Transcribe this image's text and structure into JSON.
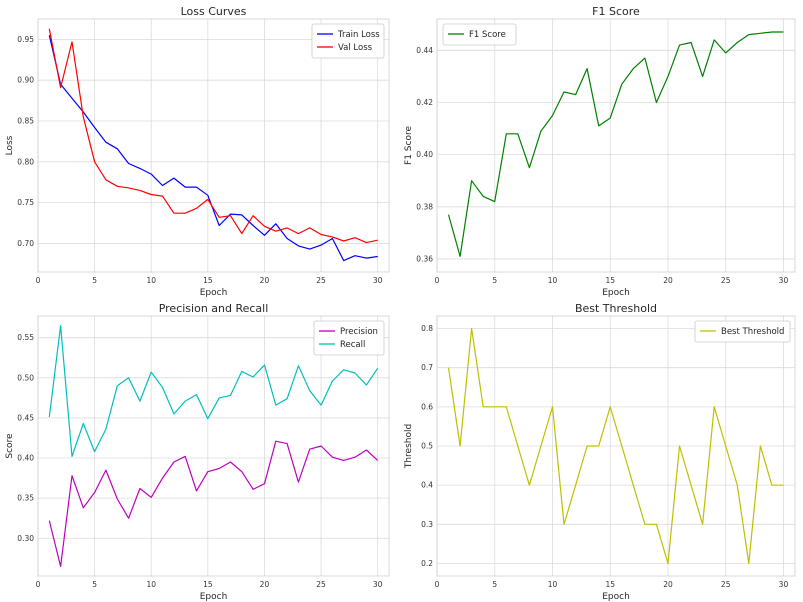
{
  "chart_data": [
    {
      "type": "line",
      "title": "Loss Curves",
      "xlabel": "Epoch",
      "ylabel": "Loss",
      "xlim": [
        0,
        31
      ],
      "ylim": [
        0.665,
        0.975
      ],
      "xticks": [
        0,
        5,
        10,
        15,
        20,
        25,
        30
      ],
      "yticks": [
        0.7,
        0.75,
        0.8,
        0.85,
        0.9,
        0.95
      ],
      "ytick_labels": [
        "0.70",
        "0.75",
        "0.80",
        "0.85",
        "0.90",
        "0.95"
      ],
      "grid": true,
      "legend": "top-right",
      "x": [
        1,
        2,
        3,
        4,
        5,
        6,
        7,
        8,
        9,
        10,
        11,
        12,
        13,
        14,
        15,
        16,
        17,
        18,
        19,
        20,
        21,
        22,
        23,
        24,
        25,
        26,
        27,
        28,
        29,
        30
      ],
      "series": [
        {
          "name": "Train Loss",
          "color": "#0000ff",
          "values": [
            0.955,
            0.895,
            0.878,
            0.861,
            0.842,
            0.824,
            0.816,
            0.798,
            0.792,
            0.785,
            0.771,
            0.78,
            0.769,
            0.769,
            0.759,
            0.722,
            0.736,
            0.735,
            0.722,
            0.71,
            0.724,
            0.706,
            0.697,
            0.693,
            0.698,
            0.706,
            0.679,
            0.685,
            0.682,
            0.684
          ]
        },
        {
          "name": "Val Loss",
          "color": "#ff0000",
          "values": [
            0.963,
            0.891,
            0.947,
            0.855,
            0.8,
            0.778,
            0.77,
            0.768,
            0.765,
            0.76,
            0.758,
            0.737,
            0.737,
            0.743,
            0.754,
            0.732,
            0.734,
            0.712,
            0.734,
            0.721,
            0.715,
            0.719,
            0.712,
            0.719,
            0.711,
            0.708,
            0.703,
            0.707,
            0.701,
            0.704
          ]
        }
      ]
    },
    {
      "type": "line",
      "title": "F1 Score",
      "xlabel": "Epoch",
      "ylabel": "F1 Score",
      "xlim": [
        0,
        31
      ],
      "ylim": [
        0.355,
        0.452
      ],
      "xticks": [
        0,
        5,
        10,
        15,
        20,
        25,
        30
      ],
      "yticks": [
        0.36,
        0.38,
        0.4,
        0.42,
        0.44
      ],
      "ytick_labels": [
        "0.36",
        "0.38",
        "0.40",
        "0.42",
        "0.44"
      ],
      "grid": true,
      "legend": "top-left",
      "x": [
        1,
        2,
        3,
        4,
        5,
        6,
        7,
        8,
        9,
        10,
        11,
        12,
        13,
        14,
        15,
        16,
        17,
        18,
        19,
        20,
        21,
        22,
        23,
        24,
        25,
        26,
        27,
        28,
        29,
        30
      ],
      "series": [
        {
          "name": "F1 Score",
          "color": "#008000",
          "values": [
            0.377,
            0.361,
            0.39,
            0.384,
            0.382,
            0.408,
            0.408,
            0.395,
            0.409,
            0.415,
            0.424,
            0.423,
            0.433,
            0.411,
            0.414,
            0.427,
            0.433,
            0.437,
            0.42,
            0.43,
            0.442,
            0.443,
            0.43,
            0.444,
            0.439,
            0.443,
            0.446,
            0.4465,
            0.447,
            0.447
          ]
        }
      ]
    },
    {
      "type": "line",
      "title": "Precision and Recall",
      "xlabel": "Epoch",
      "ylabel": "Score",
      "xlim": [
        0,
        31
      ],
      "ylim": [
        0.253,
        0.577
      ],
      "xticks": [
        0,
        5,
        10,
        15,
        20,
        25,
        30
      ],
      "yticks": [
        0.3,
        0.35,
        0.4,
        0.45,
        0.5,
        0.55
      ],
      "ytick_labels": [
        "0.30",
        "0.35",
        "0.40",
        "0.45",
        "0.50",
        "0.55"
      ],
      "grid": true,
      "legend": "top-right",
      "x": [
        1,
        2,
        3,
        4,
        5,
        6,
        7,
        8,
        9,
        10,
        11,
        12,
        13,
        14,
        15,
        16,
        17,
        18,
        19,
        20,
        21,
        22,
        23,
        24,
        25,
        26,
        27,
        28,
        29,
        30
      ],
      "series": [
        {
          "name": "Precision",
          "color": "#bf00bf",
          "values": [
            0.322,
            0.265,
            0.378,
            0.338,
            0.357,
            0.385,
            0.349,
            0.325,
            0.362,
            0.351,
            0.375,
            0.395,
            0.402,
            0.359,
            0.383,
            0.387,
            0.395,
            0.383,
            0.361,
            0.368,
            0.421,
            0.418,
            0.37,
            0.411,
            0.415,
            0.401,
            0.397,
            0.401,
            0.41,
            0.397
          ]
        },
        {
          "name": "Recall",
          "color": "#00bfbf",
          "values": [
            0.451,
            0.565,
            0.402,
            0.443,
            0.408,
            0.436,
            0.49,
            0.5,
            0.471,
            0.507,
            0.488,
            0.455,
            0.471,
            0.479,
            0.449,
            0.475,
            0.478,
            0.508,
            0.501,
            0.516,
            0.466,
            0.474,
            0.515,
            0.484,
            0.466,
            0.496,
            0.51,
            0.506,
            0.491,
            0.512
          ]
        }
      ]
    },
    {
      "type": "line",
      "title": "Best Threshold",
      "xlabel": "Epoch",
      "ylabel": "Threshold",
      "xlim": [
        0,
        31
      ],
      "ylim": [
        0.168,
        0.832
      ],
      "xticks": [
        0,
        5,
        10,
        15,
        20,
        25,
        30
      ],
      "yticks": [
        0.2,
        0.3,
        0.4,
        0.5,
        0.6,
        0.7,
        0.8
      ],
      "ytick_labels": [
        "0.2",
        "0.3",
        "0.4",
        "0.5",
        "0.6",
        "0.7",
        "0.8"
      ],
      "grid": true,
      "legend": "top-right",
      "x": [
        1,
        2,
        3,
        4,
        5,
        6,
        7,
        8,
        9,
        10,
        11,
        12,
        13,
        14,
        15,
        16,
        17,
        18,
        19,
        20,
        21,
        22,
        23,
        24,
        25,
        26,
        27,
        28,
        29,
        30
      ],
      "series": [
        {
          "name": "Best Threshold",
          "color": "#bfbf00",
          "values": [
            0.7,
            0.5,
            0.8,
            0.6,
            0.6,
            0.6,
            0.5,
            0.4,
            0.5,
            0.6,
            0.3,
            0.4,
            0.5,
            0.5,
            0.6,
            0.5,
            0.4,
            0.3,
            0.3,
            0.2,
            0.5,
            0.4,
            0.3,
            0.6,
            0.5,
            0.4,
            0.2,
            0.5,
            0.4,
            0.4
          ]
        }
      ]
    }
  ]
}
